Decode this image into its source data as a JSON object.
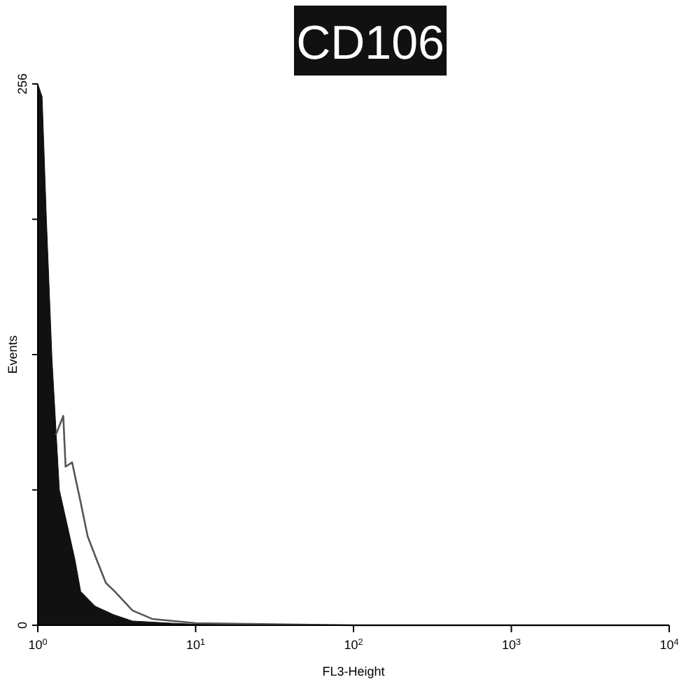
{
  "chart_data": {
    "type": "area",
    "title": "CD106",
    "xlabel": "FL3-Height",
    "ylabel": "Events",
    "log": "x",
    "xlim": [
      1,
      10000
    ],
    "ylim": [
      0,
      256
    ],
    "xticks": [
      {
        "value": 1,
        "label": "10$^{0}$"
      },
      {
        "value": 10,
        "label": "10$^{1}$"
      },
      {
        "value": 100,
        "label": "10$^{2}$"
      },
      {
        "value": 1000,
        "label": "10$^{3}$"
      },
      {
        "value": 10000,
        "label": "10$^{4}$"
      }
    ],
    "yticks": [
      0,
      {
        "value": 64,
        "label": null
      },
      {
        "value": 128,
        "label": null
      },
      {
        "value": 192,
        "label": null
      },
      256
    ],
    "series": [
      {
        "color": "#111111",
        "x": [
          1,
          1.065,
          1.134,
          1.23,
          1.37,
          1.52,
          1.72,
          1.87,
          2.31,
          3.03,
          3.98,
          7,
          10,
          100,
          10000
        ],
        "values": [
          256,
          250,
          192,
          126,
          64,
          49,
          31,
          16,
          9,
          5,
          2,
          1,
          0.5,
          0,
          0
        ]
      },
      {
        "type": "line",
        "color": "#555555",
        "x": [
          1.3,
          1.45,
          1.5,
          1.65,
          1.87,
          2.07,
          2.36,
          2.7,
          3.07,
          3.98,
          5.3,
          10,
          100,
          10000
        ],
        "values": [
          90,
          99,
          75,
          77,
          58,
          42,
          31,
          20,
          16,
          7,
          3,
          1,
          0,
          0
        ]
      }
    ]
  }
}
